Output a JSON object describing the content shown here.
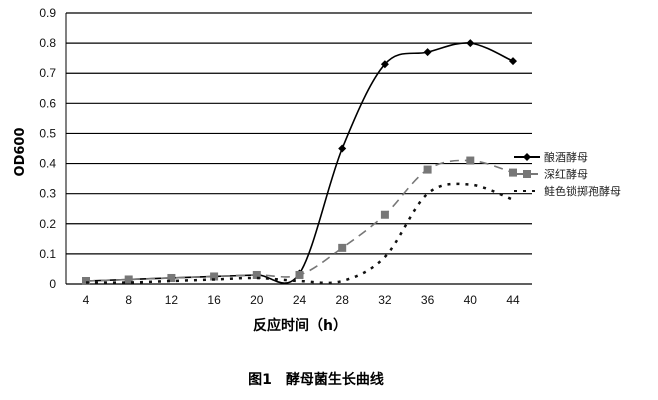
{
  "chart_data": {
    "type": "line",
    "title": "图1　酵母菌生长曲线",
    "xlabel": "反应时间（h）",
    "ylabel": "OD600",
    "x": [
      4,
      8,
      12,
      16,
      20,
      24,
      28,
      32,
      36,
      40,
      44
    ],
    "xlim": [
      4,
      44
    ],
    "ylim": [
      0,
      0.9
    ],
    "yticks": [
      "0",
      "0.1",
      "0.2",
      "0.3",
      "0.4",
      "0.5",
      "0.6",
      "0.7",
      "0.8",
      "0.9"
    ],
    "xticks": [
      "4",
      "8",
      "12",
      "16",
      "20",
      "24",
      "28",
      "32",
      "36",
      "40",
      "44"
    ],
    "grid": true,
    "legend_position": "right",
    "series": [
      {
        "name": "酿酒酵母",
        "values": [
          0.01,
          0.015,
          0.02,
          0.025,
          0.03,
          0.035,
          0.45,
          0.73,
          0.77,
          0.8,
          0.74
        ],
        "color": "#000000",
        "style": "solid",
        "marker": "diamond"
      },
      {
        "name": "深红酵母",
        "values": [
          0.01,
          0.015,
          0.02,
          0.025,
          0.03,
          0.03,
          0.12,
          0.23,
          0.38,
          0.41,
          0.37
        ],
        "color": "#777777",
        "style": "dashed",
        "marker": "square"
      },
      {
        "name": "鲑色锁掷孢酵母",
        "values": [
          0.005,
          0.005,
          0.01,
          0.015,
          0.02,
          0.01,
          0.01,
          0.09,
          0.3,
          0.33,
          0.28
        ],
        "color": "#111111",
        "style": "dotted",
        "marker": "none"
      }
    ]
  }
}
